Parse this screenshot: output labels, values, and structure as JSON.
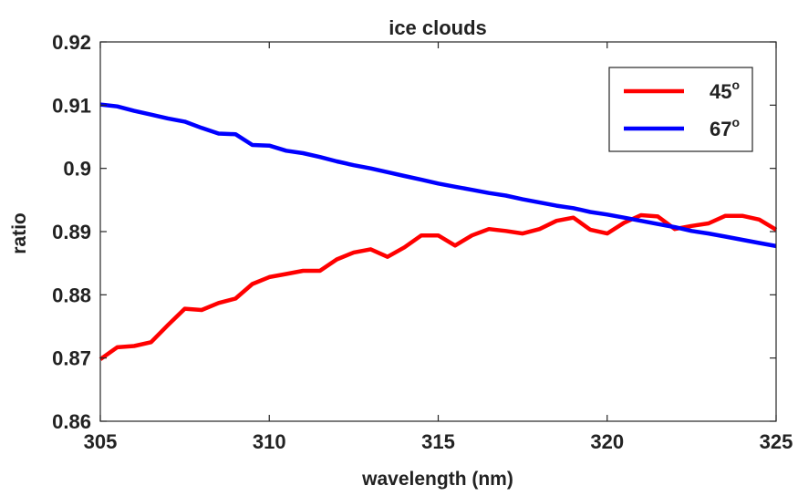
{
  "chart_data": {
    "type": "line",
    "title": "ice clouds",
    "xlabel": "wavelength (nm)",
    "ylabel": "ratio",
    "xlim": [
      305,
      325
    ],
    "ylim": [
      0.86,
      0.92
    ],
    "xticks": [
      305,
      310,
      315,
      320,
      325
    ],
    "xtick_labels": [
      "305",
      "310",
      "315",
      "320",
      "325"
    ],
    "yticks": [
      0.86,
      0.87,
      0.88,
      0.89,
      0.9,
      0.91,
      0.92
    ],
    "ytick_labels": [
      "0.86",
      "0.87",
      "0.88",
      "0.89",
      "0.9",
      "0.91",
      "0.92"
    ],
    "grid": false,
    "legend_position": "top-right",
    "series": [
      {
        "name": "45",
        "name_superscript": "o",
        "color": "#ff0000",
        "x": [
          305,
          305.5,
          306,
          306.5,
          307,
          307.5,
          308,
          308.5,
          309,
          309.5,
          310,
          310.5,
          311,
          311.5,
          312,
          312.5,
          313,
          313.5,
          314,
          314.5,
          315,
          315.5,
          316,
          316.5,
          317,
          317.5,
          318,
          318.5,
          319,
          319.5,
          320,
          320.5,
          321,
          321.5,
          322,
          322.5,
          323,
          323.5,
          324,
          324.5,
          325
        ],
        "y": [
          0.8698,
          0.8717,
          0.8719,
          0.8725,
          0.8752,
          0.8778,
          0.8776,
          0.8787,
          0.8794,
          0.8817,
          0.8828,
          0.8833,
          0.8838,
          0.8838,
          0.8856,
          0.8867,
          0.8872,
          0.886,
          0.8875,
          0.8894,
          0.8894,
          0.8878,
          0.8894,
          0.8904,
          0.8901,
          0.8897,
          0.8904,
          0.8917,
          0.8922,
          0.8903,
          0.8897,
          0.8914,
          0.8926,
          0.8924,
          0.8904,
          0.8909,
          0.8913,
          0.8925,
          0.8925,
          0.8919,
          0.8903
        ]
      },
      {
        "name": "67",
        "name_superscript": "o",
        "color": "#0000ff",
        "x": [
          305,
          305.5,
          306,
          306.5,
          307,
          307.5,
          308,
          308.5,
          309,
          309.5,
          310,
          310.5,
          311,
          311.5,
          312,
          312.5,
          313,
          313.5,
          314,
          314.5,
          315,
          315.5,
          316,
          316.5,
          317,
          317.5,
          318,
          318.5,
          319,
          319.5,
          320,
          320.5,
          321,
          321.5,
          322,
          322.5,
          323,
          323.5,
          324,
          324.5,
          325
        ],
        "y": [
          0.9101,
          0.9098,
          0.9091,
          0.9085,
          0.9079,
          0.9074,
          0.9064,
          0.9055,
          0.9054,
          0.9037,
          0.9036,
          0.9028,
          0.9024,
          0.9018,
          0.9011,
          0.9005,
          0.9,
          0.8994,
          0.8988,
          0.8982,
          0.8976,
          0.8971,
          0.8966,
          0.8961,
          0.8957,
          0.8951,
          0.8946,
          0.8941,
          0.8937,
          0.8931,
          0.8927,
          0.8922,
          0.8917,
          0.8912,
          0.8907,
          0.8901,
          0.8897,
          0.8892,
          0.8887,
          0.8882,
          0.8877
        ]
      }
    ]
  }
}
